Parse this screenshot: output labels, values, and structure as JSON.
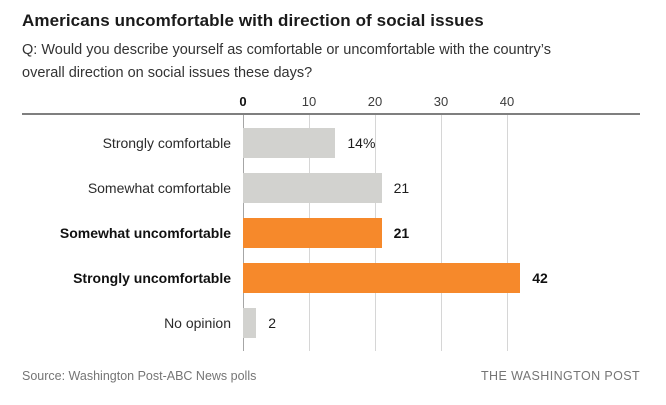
{
  "page": {
    "title": "Americans uncomfortable with direction of social issues",
    "subtitle_lines": [
      "Q: Would you describe yourself as comfortable or uncomfortable with the country’s",
      "overall direction on social issues these days?"
    ],
    "source": "Source: Washington Post-ABC News polls",
    "brand": "THE WASHINGTON POST"
  },
  "colors": {
    "accent_orange": "#f6892b",
    "neutral_gray": "#d2d2cf",
    "axis_line": "#7f7f7f",
    "gridline": "#d6d6d6",
    "gridline_zero": "#a6a6a6",
    "footer_text": "#757575"
  },
  "chart_data": {
    "type": "bar",
    "orientation": "horizontal",
    "title": "Americans uncomfortable with direction of social issues",
    "xlabel": "",
    "ylabel": "",
    "categories": [
      "Strongly comfortable",
      "Somewhat comfortable",
      "Somewhat uncomfortable",
      "Strongly uncomfortable",
      "No opinion"
    ],
    "values": [
      14,
      21,
      21,
      42,
      2
    ],
    "value_labels": [
      "14%",
      "21",
      "21",
      "42",
      "2"
    ],
    "emphasized": [
      false,
      false,
      true,
      true,
      false
    ],
    "bar_colors": [
      "#d2d2cf",
      "#d2d2cf",
      "#f6892b",
      "#f6892b",
      "#d2d2cf"
    ],
    "axis_ticks": [
      0,
      10,
      20,
      30,
      40
    ],
    "xlim": [
      0,
      60
    ],
    "grid": true,
    "legend": false,
    "axis_position": "top"
  }
}
